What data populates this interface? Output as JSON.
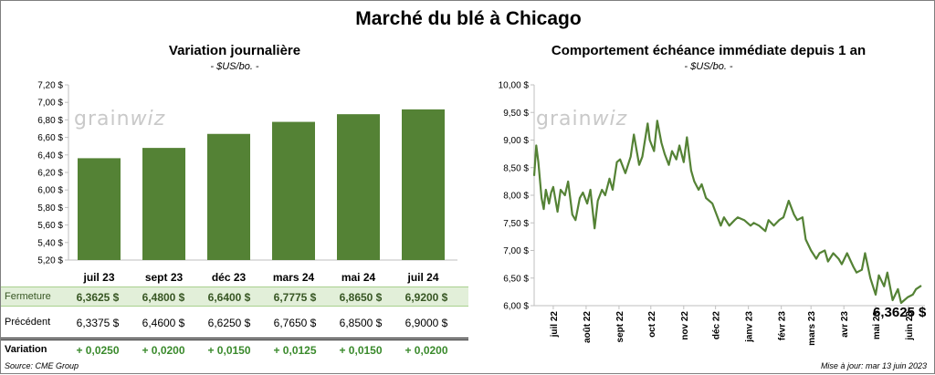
{
  "main_title": "Marché du blé à Chicago",
  "left": {
    "title": "Variation  journalière",
    "unit": "- $US/bo. -",
    "watermark": "grain",
    "watermark_w": "wiz",
    "row_labels": {
      "close": "Fermeture",
      "prev": "Précédent",
      "var": "Variation"
    },
    "close_values": [
      "6,3625  $",
      "6,4800  $",
      "6,6400  $",
      "6,7775  $",
      "6,8650  $",
      "6,9200  $"
    ],
    "prev_values": [
      "6,3375  $",
      "6,4600  $",
      "6,6250  $",
      "6,7650  $",
      "6,8500  $",
      "6,9000  $"
    ],
    "var_values": [
      "+ 0,0250",
      "+ 0,0200",
      "+ 0,0150",
      "+ 0,0125",
      "+ 0,0150",
      "+ 0,0200"
    ]
  },
  "right": {
    "title": "Comportement  échéance immédiate depuis 1 an",
    "unit": "- $US/bo. -",
    "watermark": "grain",
    "watermark_w": "wiz",
    "last_value_label": "6,3625 $"
  },
  "source": "Source: CME Group",
  "updated": "Mise à jour: mar 13 juin 2023",
  "colors": {
    "bar": "#548235",
    "line": "#548235",
    "close_row_bg": "#e2efd9"
  },
  "chart_data": [
    {
      "type": "bar",
      "title": "Variation  journalière",
      "ylabel": "- $US/bo. -",
      "categories": [
        "juil 23",
        "sept 23",
        "déc 23",
        "mars 24",
        "mai 24",
        "juil 24"
      ],
      "values": [
        6.3625,
        6.48,
        6.64,
        6.7775,
        6.865,
        6.92
      ],
      "ylim": [
        5.2,
        7.2
      ],
      "yticks": [
        "7,20 $",
        "7,00 $",
        "6,80 $",
        "6,60 $",
        "6,40 $",
        "6,20 $",
        "6,00 $",
        "5,80 $",
        "5,60 $",
        "5,40 $",
        "5,20 $"
      ],
      "grid": false
    },
    {
      "type": "line",
      "title": "Comportement  échéance immédiate depuis 1 an",
      "ylabel": "- $US/bo. -",
      "ylim": [
        6.0,
        10.0
      ],
      "yticks": [
        "10,00 $",
        "9,50 $",
        "9,00 $",
        "8,50 $",
        "8,00 $",
        "7,50 $",
        "7,00 $",
        "6,50 $",
        "6,00 $"
      ],
      "xticks": [
        "juil 22",
        "août 22",
        "sept 22",
        "oct 22",
        "nov 22",
        "déc 22",
        "janv 23",
        "févr 23",
        "mars 23",
        "avr 23",
        "mai 23",
        "juin 23"
      ],
      "grid": false,
      "x": [
        "2022-06-13",
        "2022-06-15",
        "2022-06-17",
        "2022-06-20",
        "2022-06-22",
        "2022-06-24",
        "2022-06-27",
        "2022-06-29",
        "2022-07-01",
        "2022-07-05",
        "2022-07-08",
        "2022-07-12",
        "2022-07-15",
        "2022-07-19",
        "2022-07-22",
        "2022-07-26",
        "2022-07-29",
        "2022-08-02",
        "2022-08-05",
        "2022-08-09",
        "2022-08-12",
        "2022-08-16",
        "2022-08-19",
        "2022-08-23",
        "2022-08-26",
        "2022-08-30",
        "2022-09-02",
        "2022-09-07",
        "2022-09-12",
        "2022-09-15",
        "2022-09-20",
        "2022-09-23",
        "2022-09-28",
        "2022-09-30",
        "2022-10-04",
        "2022-10-07",
        "2022-10-11",
        "2022-10-14",
        "2022-10-18",
        "2022-10-21",
        "2022-10-25",
        "2022-10-28",
        "2022-11-01",
        "2022-11-04",
        "2022-11-08",
        "2022-11-11",
        "2022-11-15",
        "2022-11-18",
        "2022-11-22",
        "2022-11-28",
        "2022-12-01",
        "2022-12-06",
        "2022-12-09",
        "2022-12-14",
        "2022-12-19",
        "2022-12-22",
        "2022-12-28",
        "2023-01-03",
        "2023-01-06",
        "2023-01-11",
        "2023-01-17",
        "2023-01-20",
        "2023-01-25",
        "2023-01-30",
        "2023-02-03",
        "2023-02-08",
        "2023-02-13",
        "2023-02-16",
        "2023-02-21",
        "2023-02-24",
        "2023-03-01",
        "2023-03-06",
        "2023-03-09",
        "2023-03-14",
        "2023-03-17",
        "2023-03-22",
        "2023-03-27",
        "2023-03-30",
        "2023-04-04",
        "2023-04-10",
        "2023-04-13",
        "2023-04-18",
        "2023-04-21",
        "2023-04-26",
        "2023-05-01",
        "2023-05-04",
        "2023-05-09",
        "2023-05-12",
        "2023-05-17",
        "2023-05-22",
        "2023-05-25",
        "2023-05-31",
        "2023-06-05",
        "2023-06-08",
        "2023-06-13"
      ],
      "y": [
        8.35,
        8.9,
        8.6,
        7.95,
        7.75,
        8.1,
        7.85,
        8.05,
        8.15,
        7.7,
        8.1,
        8.0,
        8.25,
        7.65,
        7.55,
        7.95,
        8.05,
        7.85,
        8.1,
        7.4,
        7.9,
        8.1,
        8.0,
        8.3,
        8.1,
        8.6,
        8.65,
        8.4,
        8.7,
        9.1,
        8.55,
        8.7,
        9.3,
        9.0,
        8.8,
        9.35,
        8.95,
        8.75,
        8.55,
        8.8,
        8.65,
        8.9,
        8.6,
        9.05,
        8.45,
        8.25,
        8.1,
        8.2,
        7.95,
        7.85,
        7.7,
        7.45,
        7.6,
        7.45,
        7.55,
        7.6,
        7.55,
        7.45,
        7.5,
        7.45,
        7.35,
        7.55,
        7.45,
        7.55,
        7.6,
        7.9,
        7.65,
        7.55,
        7.6,
        7.2,
        7.0,
        6.85,
        6.95,
        7.0,
        6.8,
        6.95,
        6.85,
        6.75,
        6.95,
        6.7,
        6.6,
        6.65,
        6.95,
        6.5,
        6.2,
        6.55,
        6.35,
        6.6,
        6.1,
        6.3,
        6.05,
        6.15,
        6.2,
        6.3,
        6.3625
      ]
    }
  ]
}
